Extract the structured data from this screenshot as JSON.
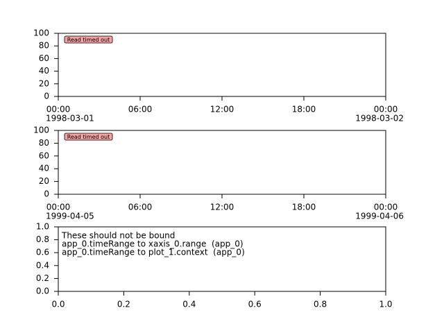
{
  "chart_data": [
    {
      "type": "line",
      "xlim": [
        0,
        24
      ],
      "ylim": [
        0,
        100
      ],
      "xticks": [
        {
          "value": 0,
          "label": "00:00",
          "sublabel": "1998-03-01"
        },
        {
          "value": 6,
          "label": "06:00"
        },
        {
          "value": 12,
          "label": "12:00"
        },
        {
          "value": 18,
          "label": "18:00"
        },
        {
          "value": 24,
          "label": "00:00",
          "sublabel": "1998-03-02"
        }
      ],
      "yticks": [
        0,
        20,
        40,
        60,
        80,
        100
      ],
      "annotation": "Read timed out"
    },
    {
      "type": "line",
      "xlim": [
        0,
        24
      ],
      "ylim": [
        0,
        100
      ],
      "xticks": [
        {
          "value": 0,
          "label": "00:00",
          "sublabel": "1999-04-05"
        },
        {
          "value": 6,
          "label": "06:00"
        },
        {
          "value": 12,
          "label": "12:00"
        },
        {
          "value": 18,
          "label": "18:00"
        },
        {
          "value": 24,
          "label": "00:00",
          "sublabel": "1999-04-06"
        }
      ],
      "yticks": [
        0,
        20,
        40,
        60,
        80,
        100
      ],
      "annotation": "Read timed out"
    },
    {
      "type": "line",
      "xlim": [
        0,
        1
      ],
      "ylim": [
        0,
        1
      ],
      "xticks": [
        {
          "value": 0,
          "label": "0.0"
        },
        0.2,
        0.4,
        0.6,
        0.8,
        {
          "value": 1,
          "label": "1.0"
        }
      ],
      "yticks": [
        {
          "value": 0,
          "label": "0.0"
        },
        0.2,
        0.4,
        0.6,
        0.8,
        {
          "value": 1,
          "label": "1.0"
        }
      ],
      "text_lines": [
        "These should not be bound",
        "app_0.timeRange to xaxis_0.range  (app_0)",
        "app_0.timeRange to plot_1.context  (app_0)"
      ]
    }
  ]
}
